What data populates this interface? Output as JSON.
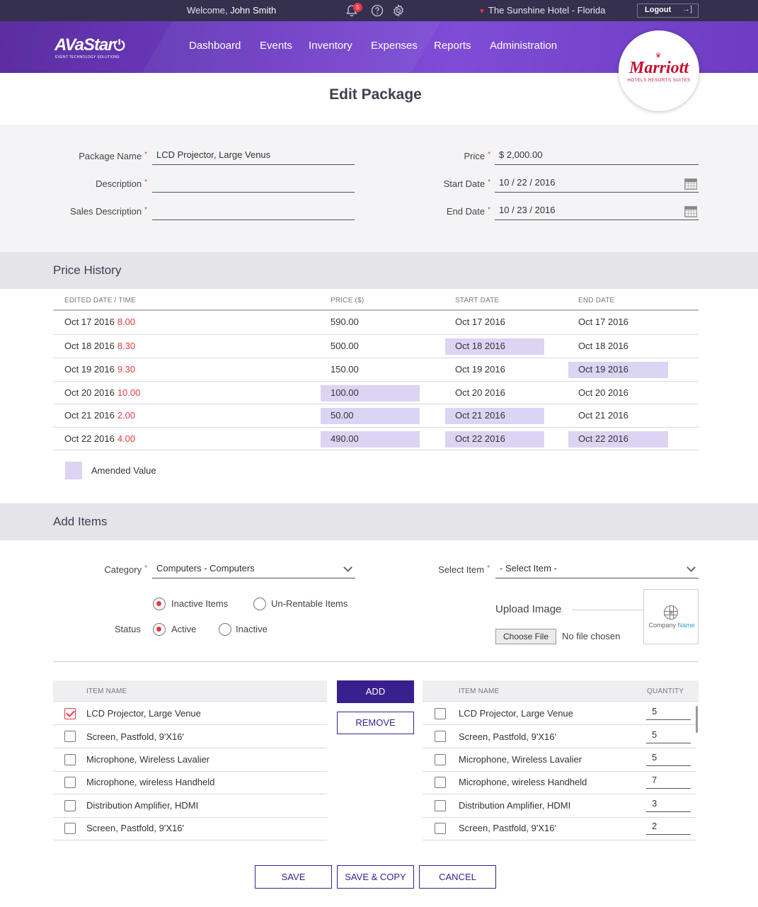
{
  "topbar": {
    "welcome_prefix": "Welcome,",
    "user_name": "John Smith",
    "notification_count": "5",
    "hotel": "The Sunshine Hotel - Florida",
    "logout_label": "Logout"
  },
  "nav": {
    "logo_text": "AVaStar",
    "logo_tagline": "EVENT TECHNOLOGY SOLUTIONS",
    "items": [
      "Dashboard",
      "Events",
      "Inventory",
      "Expenses",
      "Reports",
      "Administration"
    ],
    "brand_name": "Marriott",
    "brand_sub": "HOTELS·RESORTS·SUITES"
  },
  "page": {
    "title": "Edit Package"
  },
  "form": {
    "package_name_label": "Package Name",
    "package_name_value": "LCD Projector, Large Venus",
    "description_label": "Description",
    "description_value": "",
    "sales_description_label": "Sales Description",
    "sales_description_value": "",
    "price_label": "Price",
    "price_value": "$ 2,000.00",
    "start_date_label": "Start Date",
    "start_date_value": "10 / 22 / 2016",
    "end_date_label": "End Date",
    "end_date_value": "10 / 23 / 2016"
  },
  "price_history": {
    "title": "Price History",
    "headers": [
      "EDITED DATE / TIME",
      "PRICE ($)",
      "START DATE",
      "END DATE"
    ],
    "rows": [
      {
        "date": "Oct 17 2016",
        "time": "8.00",
        "price": "590.00",
        "start": "Oct 17 2016",
        "end": "Oct 17 2016"
      },
      {
        "date": "Oct 18 2016",
        "time": "8.30",
        "price": "500.00",
        "start": "Oct 18 2016",
        "end": "Oct 18 2016"
      },
      {
        "date": "Oct 19 2016",
        "time": "9.30",
        "price": "150.00",
        "start": "Oct 19 2016",
        "end": "Oct 19 2016"
      },
      {
        "date": "Oct 20 2016",
        "time": "10.00",
        "price": "100.00",
        "start": "Oct 20 2016",
        "end": "Oct 20 2016"
      },
      {
        "date": "Oct 21 2016",
        "time": "2.00",
        "price": "50.00",
        "start": "Oct 21 2016",
        "end": "Oct 21 2016"
      },
      {
        "date": "Oct 22 2016",
        "time": "4.00",
        "price": "490.00",
        "start": "Oct 22 2016",
        "end": "Oct 22 2016"
      }
    ],
    "legend": "Amended Value"
  },
  "add_items": {
    "title": "Add Items",
    "category_label": "Category",
    "category_value": "Computers - Computers",
    "select_item_label": "Select Item",
    "select_item_value": "- Select Item -",
    "filter_inactive": "Inactive Items",
    "filter_unrentable": "Un-Rentable Items",
    "status_label": "Status",
    "status_active": "Active",
    "status_inactive": "Inactive",
    "upload_label": "Upload Image",
    "company_word1": "Company",
    "company_word2": "Name",
    "choose_file": "Choose File",
    "no_file": "No file chosen",
    "left_header": "ITEM NAME",
    "right_header_name": "ITEM NAME",
    "right_header_qty": "QUANTITY",
    "add_label": "ADD",
    "remove_label": "REMOVE",
    "left_items": [
      {
        "name": "LCD Projector, Large Venue",
        "checked": true
      },
      {
        "name": "Screen, Pastfold, 9'X16'",
        "checked": false
      },
      {
        "name": "Microphone, Wireless Lavalier",
        "checked": false
      },
      {
        "name": "Microphone, wireless Handheld",
        "checked": false
      },
      {
        "name": "Distribution Amplifier, HDMI",
        "checked": false
      },
      {
        "name": "Screen, Pastfold, 9'X16'",
        "checked": false
      }
    ],
    "right_items": [
      {
        "name": "LCD Projector, Large Venue",
        "qty": "5"
      },
      {
        "name": "Screen, Pastfold, 9'X16'",
        "qty": "5"
      },
      {
        "name": "Microphone, Wireless Lavalier",
        "qty": "5"
      },
      {
        "name": "Microphone, wireless Handheld",
        "qty": "7"
      },
      {
        "name": "Distribution Amplifier, HDMI",
        "qty": "3"
      },
      {
        "name": "Screen, Pastfold, 9'X16'",
        "qty": "2"
      }
    ]
  },
  "actions": {
    "save": "SAVE",
    "save_copy": "SAVE & COPY",
    "cancel": "CANCEL"
  },
  "colors": {
    "accent": "#3a1f8f",
    "amended": "#dcd4f3",
    "required": "#e53946",
    "topbar": "#35304d"
  }
}
